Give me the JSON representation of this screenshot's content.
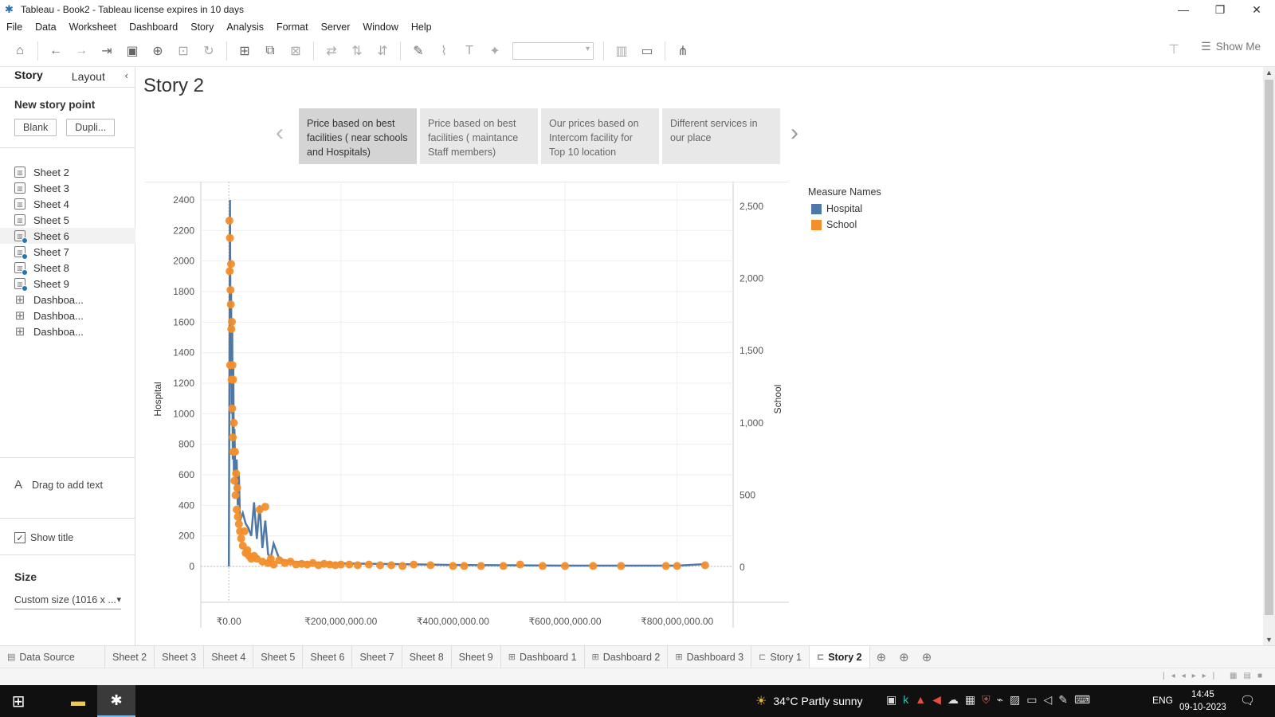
{
  "window": {
    "title": "Tableau - Book2 - Tableau license expires in 10 days",
    "minimize": "—",
    "restore": "❐",
    "close": "✕"
  },
  "menu": [
    "File",
    "Data",
    "Worksheet",
    "Dashboard",
    "Story",
    "Analysis",
    "Format",
    "Server",
    "Window",
    "Help"
  ],
  "toolbar": {
    "show_me": "Show Me"
  },
  "left_panel": {
    "tabs": [
      "Story",
      "Layout"
    ],
    "active_tab": "Story",
    "new_story_point": "New story point",
    "blank_button": "Blank",
    "duplicate_button": "Dupli...",
    "sheets": [
      {
        "label": "Sheet 2",
        "used": false
      },
      {
        "label": "Sheet 3",
        "used": false
      },
      {
        "label": "Sheet 4",
        "used": false
      },
      {
        "label": "Sheet 5",
        "used": false
      },
      {
        "label": "Sheet 6",
        "used": true
      },
      {
        "label": "Sheet 7",
        "used": true
      },
      {
        "label": "Sheet 8",
        "used": true
      },
      {
        "label": "Sheet 9",
        "used": true
      },
      {
        "label": "Dashboa...",
        "used": false,
        "type": "dashboard"
      },
      {
        "label": "Dashboa...",
        "used": false,
        "type": "dashboard"
      },
      {
        "label": "Dashboa...",
        "used": false,
        "type": "dashboard"
      }
    ],
    "drag_text": "Drag to add text",
    "show_title": "Show title",
    "size_label": "Size",
    "size_value": "Custom size (1016 x ..."
  },
  "story": {
    "title": "Story 2",
    "points": [
      "Price based on best facilities ( near schools and Hospitals)",
      "Price based on best facilities ( maintance Staff members)",
      "Our prices based on Intercom facility for Top 10 location",
      "Different services in our place"
    ],
    "active_point": 0
  },
  "chart_data": {
    "type": "line",
    "xlabel": "",
    "ylabel": "Hospital",
    "y2label": "School",
    "x_ticks": [
      "₹0.00",
      "₹200,000,000.00",
      "₹400,000,000.00",
      "₹600,000,000.00",
      "₹800,000,000.00"
    ],
    "x_tick_values": [
      0,
      200000000,
      400000000,
      600000000,
      800000000
    ],
    "xlim": [
      -50000000,
      900000000
    ],
    "y_ticks": [
      "0",
      "200",
      "400",
      "600",
      "800",
      "1000",
      "1200",
      "1400",
      "1600",
      "1800",
      "2000",
      "2200",
      "2400"
    ],
    "y_tick_values": [
      0,
      200,
      400,
      600,
      800,
      1000,
      1200,
      1400,
      1600,
      1800,
      2000,
      2200,
      2400
    ],
    "ylim": [
      -120,
      2520
    ],
    "y2_ticks": [
      "0",
      "500",
      "1,000",
      "1,500",
      "2,000",
      "2,500"
    ],
    "y2_tick_values": [
      0,
      500,
      1000,
      1500,
      2000,
      2500
    ],
    "y2lim": [
      -120,
      2670
    ],
    "grid": true,
    "legend_title": "Measure Names",
    "legend_placement": "right",
    "series": [
      {
        "name": "Hospital",
        "color": "#4e79a7",
        "mark": "line",
        "x": [
          0,
          2000000,
          3000000,
          4000000,
          5000000,
          6000000,
          7000000,
          8000000,
          9000000,
          10000000,
          12000000,
          14000000,
          16000000,
          18000000,
          20000000,
          25000000,
          30000000,
          35000000,
          40000000,
          45000000,
          50000000,
          55000000,
          60000000,
          65000000,
          70000000,
          75000000,
          80000000,
          90000000,
          100000000,
          120000000,
          150000000,
          200000000,
          300000000,
          400000000,
          500000000,
          600000000,
          700000000,
          800000000,
          850000000
        ],
        "values": [
          0,
          2400,
          1400,
          1800,
          1000,
          1600,
          700,
          1300,
          600,
          900,
          500,
          700,
          400,
          600,
          300,
          350,
          280,
          250,
          200,
          420,
          180,
          400,
          120,
          300,
          80,
          60,
          150,
          50,
          40,
          30,
          25,
          20,
          15,
          10,
          8,
          5,
          5,
          5,
          15
        ]
      },
      {
        "name": "School",
        "color": "#f28e2b",
        "mark": "circle",
        "x": [
          1000000,
          1500000,
          2000000,
          2500000,
          3000000,
          3500000,
          4000000,
          4500000,
          5000000,
          5500000,
          6000000,
          6500000,
          7000000,
          7500000,
          8000000,
          9000000,
          10000000,
          11000000,
          12000000,
          13000000,
          14000000,
          15000000,
          16000000,
          18000000,
          20000000,
          22000000,
          25000000,
          28000000,
          30000000,
          33000000,
          36000000,
          40000000,
          45000000,
          50000000,
          55000000,
          60000000,
          65000000,
          70000000,
          75000000,
          80000000,
          90000000,
          100000000,
          110000000,
          120000000,
          130000000,
          140000000,
          150000000,
          160000000,
          170000000,
          180000000,
          190000000,
          200000000,
          215000000,
          230000000,
          250000000,
          270000000,
          290000000,
          310000000,
          330000000,
          360000000,
          400000000,
          420000000,
          450000000,
          490000000,
          520000000,
          560000000,
          600000000,
          650000000,
          700000000,
          780000000,
          800000000,
          850000000
        ],
        "values": [
          2400,
          2050,
          2280,
          1400,
          1920,
          1820,
          2100,
          1650,
          1300,
          1700,
          1100,
          1400,
          900,
          1300,
          800,
          1000,
          600,
          800,
          500,
          650,
          400,
          550,
          350,
          300,
          250,
          200,
          150,
          250,
          100,
          120,
          80,
          60,
          80,
          60,
          400,
          40,
          420,
          30,
          60,
          20,
          50,
          30,
          40,
          20,
          25,
          20,
          30,
          15,
          25,
          20,
          15,
          20,
          20,
          15,
          20,
          15,
          15,
          10,
          20,
          15,
          10,
          10,
          10,
          10,
          20,
          10,
          10,
          10,
          10,
          10,
          10,
          15
        ]
      }
    ]
  },
  "sheet_tabs": [
    {
      "label": "Data Source",
      "icon": "database-icon"
    },
    {
      "label": "Sheet 2"
    },
    {
      "label": "Sheet 3"
    },
    {
      "label": "Sheet 4"
    },
    {
      "label": "Sheet 5"
    },
    {
      "label": "Sheet 6"
    },
    {
      "label": "Sheet 7"
    },
    {
      "label": "Sheet 8"
    },
    {
      "label": "Sheet 9"
    },
    {
      "label": "Dashboard 1",
      "icon": "dashboard-icon"
    },
    {
      "label": "Dashboard 2",
      "icon": "dashboard-icon"
    },
    {
      "label": "Dashboard 3",
      "icon": "dashboard-icon"
    },
    {
      "label": "Story 1",
      "icon": "story-icon"
    },
    {
      "label": "Story 2",
      "icon": "story-icon",
      "active": true
    }
  ],
  "taskbar": {
    "weather": "34°C  Partly sunny",
    "language": "ENG",
    "time": "14:45",
    "date": "09-10-2023",
    "notifications": "3"
  }
}
